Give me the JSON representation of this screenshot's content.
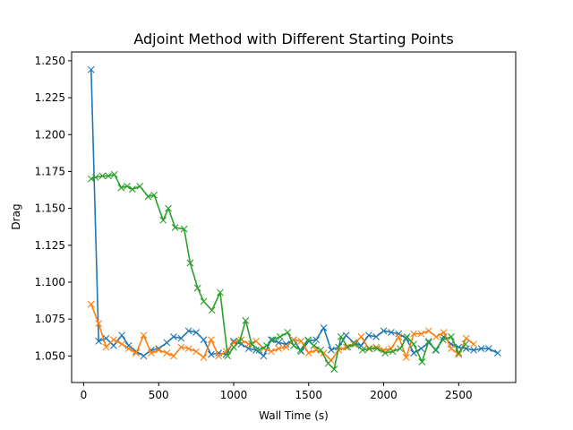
{
  "chart_data": {
    "type": "line",
    "title": "Adjoint Method with Different Starting Points",
    "xlabel": "Wall Time (s)",
    "ylabel": "Drag",
    "xlim": [
      -80,
      2880
    ],
    "ylim": [
      1.032,
      1.256
    ],
    "x_ticks": [
      0,
      500,
      1000,
      1500,
      2000,
      2500
    ],
    "y_ticks": [
      1.05,
      1.075,
      1.1,
      1.125,
      1.15,
      1.175,
      1.2,
      1.225,
      1.25
    ],
    "y_tick_labels": [
      "1.050",
      "1.075",
      "1.100",
      "1.125",
      "1.150",
      "1.175",
      "1.200",
      "1.225",
      "1.250"
    ],
    "grid": false,
    "marker": "x",
    "series": [
      {
        "color": "#1f77b4",
        "x": [
          50,
          100,
          150,
          200,
          255,
          300,
          350,
          400,
          450,
          500,
          555,
          600,
          650,
          700,
          750,
          800,
          850,
          900,
          950,
          1000,
          1050,
          1100,
          1150,
          1200,
          1250,
          1300,
          1350,
          1400,
          1450,
          1500,
          1550,
          1600,
          1650,
          1700,
          1750,
          1800,
          1850,
          1900,
          1950,
          2000,
          2050,
          2100,
          2150,
          2200,
          2250,
          2300,
          2350,
          2400,
          2450,
          2500,
          2550,
          2600,
          2650,
          2700,
          2760
        ],
        "y": [
          1.244,
          1.06,
          1.062,
          1.057,
          1.064,
          1.057,
          1.053,
          1.05,
          1.054,
          1.055,
          1.059,
          1.063,
          1.062,
          1.067,
          1.066,
          1.061,
          1.051,
          1.052,
          1.051,
          1.06,
          1.058,
          1.055,
          1.054,
          1.05,
          1.061,
          1.059,
          1.058,
          1.061,
          1.053,
          1.06,
          1.061,
          1.069,
          1.054,
          1.056,
          1.064,
          1.059,
          1.057,
          1.064,
          1.063,
          1.067,
          1.066,
          1.065,
          1.062,
          1.052,
          1.055,
          1.059,
          1.054,
          1.063,
          1.058,
          1.056,
          1.055,
          1.054,
          1.055,
          1.055,
          1.052
        ]
      },
      {
        "color": "#ff7f0e",
        "x": [
          50,
          100,
          150,
          200,
          255,
          300,
          350,
          400,
          450,
          500,
          555,
          600,
          650,
          700,
          750,
          800,
          850,
          900,
          950,
          1000,
          1050,
          1100,
          1150,
          1200,
          1250,
          1300,
          1350,
          1400,
          1450,
          1500,
          1550,
          1600,
          1650,
          1700,
          1750,
          1800,
          1850,
          1900,
          1950,
          2000,
          2050,
          2100,
          2150,
          2200,
          2250,
          2300,
          2350,
          2400,
          2450,
          2500,
          2550,
          2600
        ],
        "y": [
          1.085,
          1.072,
          1.056,
          1.061,
          1.058,
          1.055,
          1.052,
          1.064,
          1.052,
          1.054,
          1.052,
          1.05,
          1.056,
          1.055,
          1.053,
          1.049,
          1.061,
          1.05,
          1.053,
          1.059,
          1.061,
          1.058,
          1.06,
          1.055,
          1.053,
          1.055,
          1.056,
          1.061,
          1.06,
          1.052,
          1.054,
          1.052,
          1.047,
          1.054,
          1.056,
          1.058,
          1.063,
          1.055,
          1.056,
          1.054,
          1.055,
          1.063,
          1.049,
          1.065,
          1.065,
          1.067,
          1.063,
          1.066,
          1.055,
          1.051,
          1.062,
          1.058
        ]
      },
      {
        "color": "#2ca02c",
        "x": [
          50,
          80,
          125,
          165,
          205,
          250,
          290,
          325,
          375,
          430,
          470,
          530,
          565,
          610,
          670,
          710,
          760,
          800,
          855,
          910,
          960,
          1000,
          1040,
          1080,
          1120,
          1170,
          1220,
          1260,
          1310,
          1360,
          1400,
          1445,
          1495,
          1535,
          1580,
          1630,
          1670,
          1715,
          1760,
          1810,
          1860,
          1905,
          1955,
          2010,
          2060,
          2110,
          2155,
          2200,
          2255,
          2300,
          2345,
          2395,
          2450,
          2500,
          2545
        ],
        "y": [
          1.17,
          1.171,
          1.172,
          1.172,
          1.173,
          1.164,
          1.165,
          1.163,
          1.165,
          1.158,
          1.159,
          1.142,
          1.15,
          1.137,
          1.136,
          1.113,
          1.096,
          1.087,
          1.081,
          1.093,
          1.05,
          1.056,
          1.06,
          1.074,
          1.058,
          1.054,
          1.057,
          1.061,
          1.063,
          1.066,
          1.057,
          1.054,
          1.061,
          1.057,
          1.054,
          1.045,
          1.041,
          1.063,
          1.056,
          1.058,
          1.054,
          1.055,
          1.055,
          1.052,
          1.053,
          1.055,
          1.063,
          1.058,
          1.046,
          1.06,
          1.054,
          1.061,
          1.063,
          1.052,
          1.058
        ]
      }
    ]
  }
}
